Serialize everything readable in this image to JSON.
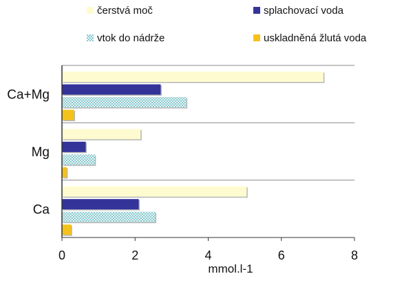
{
  "chart_data": {
    "type": "bar",
    "orientation": "horizontal",
    "categories": [
      "Ca+Mg",
      "Mg",
      "Ca"
    ],
    "series": [
      {
        "name": "čerstvá moč",
        "color": "#fffbd1",
        "pattern": "solid",
        "values": [
          7.15,
          2.15,
          5.05
        ]
      },
      {
        "name": "splachovací voda",
        "color": "#33339a",
        "pattern": "solid",
        "values": [
          2.7,
          0.65,
          2.1
        ]
      },
      {
        "name": "vtok do nádrže",
        "color": "#bde3e6",
        "pattern": "checker",
        "values": [
          3.4,
          0.9,
          2.55
        ]
      },
      {
        "name": "uskladněná žlutá voda",
        "color": "#f4c21a",
        "pattern": "solid",
        "values": [
          0.33,
          0.13,
          0.25
        ]
      }
    ],
    "xlim": [
      0,
      8
    ],
    "xticks": [
      "0",
      "2",
      "4",
      "6",
      "8"
    ],
    "xlabel": "mmol.l-1",
    "ylabel": "",
    "title": "",
    "legend_position": "top",
    "grid": "horizontal separators between categories"
  }
}
